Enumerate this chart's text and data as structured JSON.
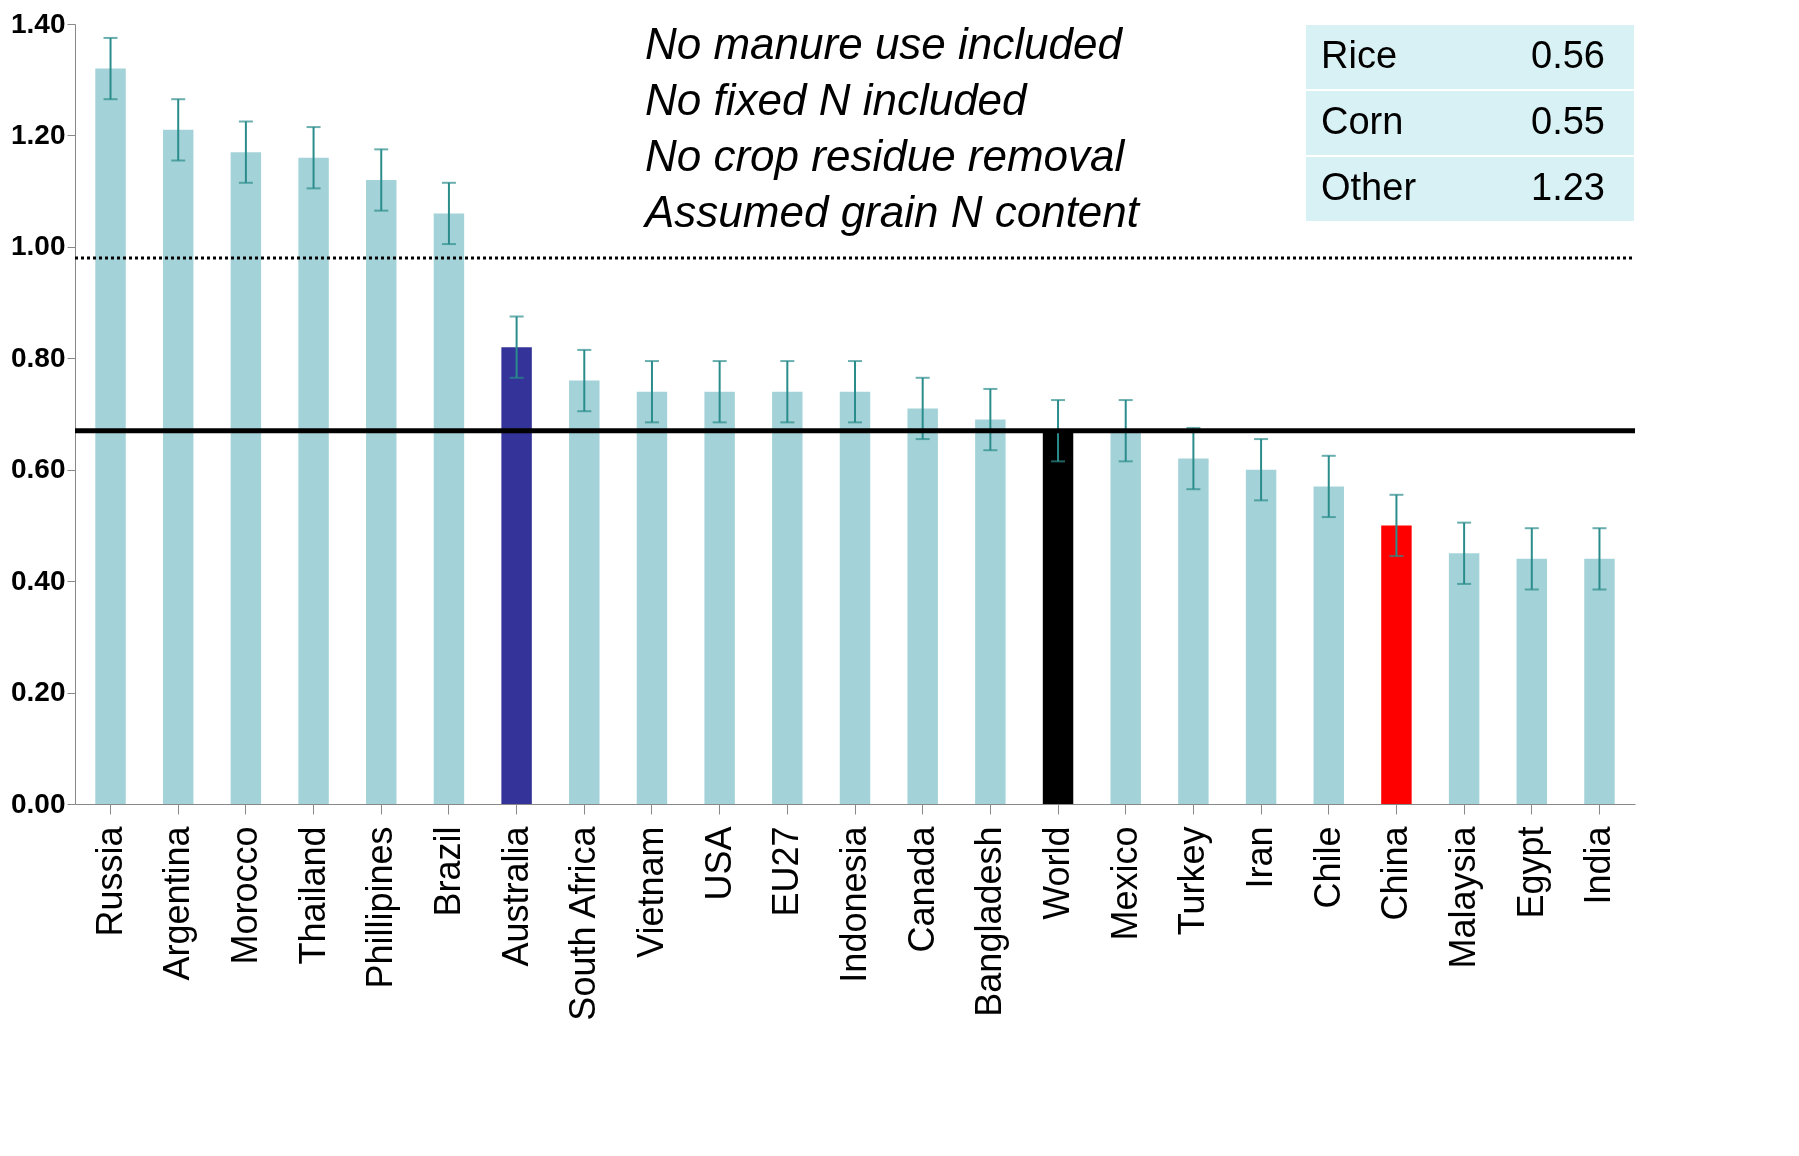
{
  "chart_data": {
    "type": "bar",
    "categories": [
      "Russia",
      "Argentina",
      "Morocco",
      "Thailand",
      "Phillipines",
      "Brazil",
      "Australia",
      "South Africa",
      "Vietnam",
      "USA",
      "EU27",
      "Indonesia",
      "Canada",
      "Bangladesh",
      "World",
      "Mexico",
      "Turkey",
      "Iran",
      "Chile",
      "China",
      "Malaysia",
      "Egypt",
      "India"
    ],
    "values": [
      1.32,
      1.21,
      1.17,
      1.16,
      1.12,
      1.06,
      0.82,
      0.76,
      0.74,
      0.74,
      0.74,
      0.74,
      0.71,
      0.69,
      0.67,
      0.67,
      0.62,
      0.6,
      0.57,
      0.5,
      0.45,
      0.44,
      0.44
    ],
    "colors": [
      "#a3d3d8",
      "#a3d3d8",
      "#a3d3d8",
      "#a3d3d8",
      "#a3d3d8",
      "#a3d3d8",
      "#333399",
      "#a3d3d8",
      "#a3d3d8",
      "#a3d3d8",
      "#a3d3d8",
      "#a3d3d8",
      "#a3d3d8",
      "#a3d3d8",
      "#000000",
      "#a3d3d8",
      "#a3d3d8",
      "#a3d3d8",
      "#a3d3d8",
      "#ff0000",
      "#a3d3d8",
      "#a3d3d8",
      "#a3d3d8"
    ],
    "errors": [
      0.055,
      0.055,
      0.055,
      0.055,
      0.055,
      0.055,
      0.055,
      0.055,
      0.055,
      0.055,
      0.055,
      0.055,
      0.055,
      0.055,
      0.055,
      0.055,
      0.055,
      0.055,
      0.055,
      0.055,
      0.055,
      0.055,
      0.055
    ],
    "ylim": [
      0,
      1.4
    ],
    "yticks": [
      {
        "value": 0,
        "label": "0.00"
      },
      {
        "value": 0.2,
        "label": "0.20"
      },
      {
        "value": 0.4,
        "label": "0.40"
      },
      {
        "value": 0.6,
        "label": "0.60"
      },
      {
        "value": 0.8,
        "label": "0.80"
      },
      {
        "value": 1.0,
        "label": "1.00"
      },
      {
        "value": 1.2,
        "label": "1.20"
      },
      {
        "value": 1.4,
        "label": "1.40"
      }
    ],
    "ref_lines": [
      {
        "axis": "y",
        "value": 0.98,
        "color": "#000000",
        "line_style": "dotted"
      },
      {
        "axis": "y",
        "value": 0.67,
        "color": "#000000",
        "line_style": "solid"
      }
    ],
    "annotations": [
      "No manure use included",
      "No fixed N included",
      "No crop residue removal",
      "Assumed grain N content",
      "Rice 0.56",
      "Corn 0.55",
      "Other 1.23"
    ],
    "grid": false
  }
}
